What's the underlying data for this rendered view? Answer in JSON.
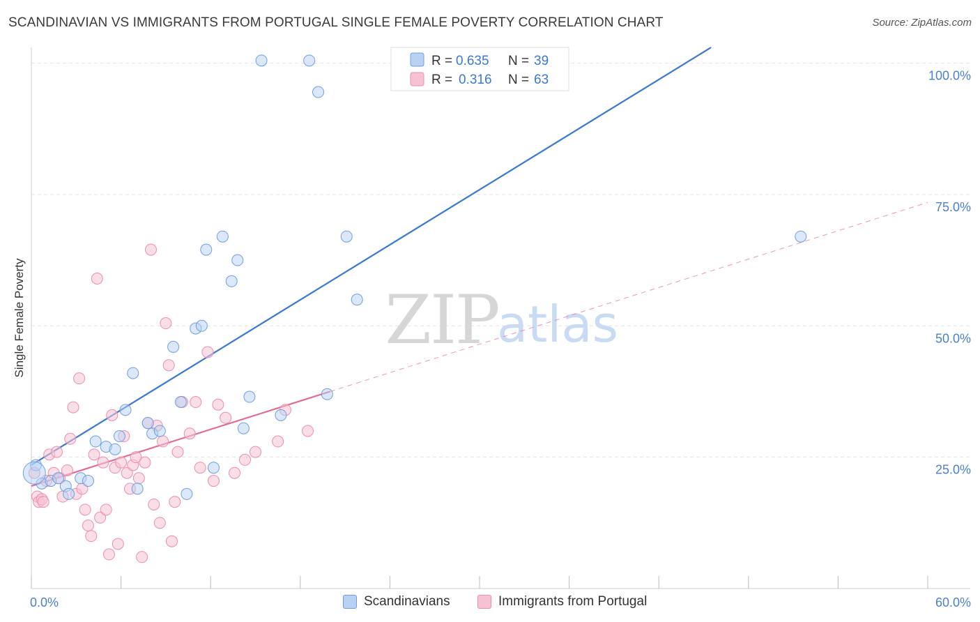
{
  "header": {
    "title": "SCANDINAVIAN VS IMMIGRANTS FROM PORTUGAL SINGLE FEMALE POVERTY CORRELATION CHART",
    "source": "Source: ZipAtlas.com"
  },
  "watermark": {
    "zip": "ZIP",
    "atlas": "atlas"
  },
  "legend": {
    "r_label": "R =",
    "n_label": "N =",
    "rows": [
      {
        "r": "0.635",
        "n": "39"
      },
      {
        "r": "0.316",
        "n": "63"
      }
    ]
  },
  "bottom_legend": {
    "items": [
      "Scandinavians",
      "Immigrants from Portugal"
    ]
  },
  "chart_data": {
    "type": "scatter",
    "title": "SCANDINAVIAN VS IMMIGRANTS FROM PORTUGAL SINGLE FEMALE POVERTY CORRELATION CHART",
    "xlabel": "",
    "ylabel": "Single Female Poverty",
    "xlim": [
      0,
      60
    ],
    "ylim": [
      0,
      103
    ],
    "x_tick_labels": [
      "0.0%",
      "60.0%"
    ],
    "y_ticks": [
      25,
      50,
      75,
      100
    ],
    "y_tick_labels": [
      "25.0%",
      "50.0%",
      "75.0%",
      "100.0%"
    ],
    "grid": true,
    "legend_position": "top-center",
    "colors": {
      "scandinavians": "#3b78d4",
      "scandinavians_fill": "#b8d1f3",
      "portugal": "#e26b97",
      "portugal_fill": "#f6c2d3",
      "tick_text": "#4a7fcf"
    },
    "series": [
      {
        "name": "Scandinavians",
        "r": 0.635,
        "n": 39,
        "trend": {
          "x": [
            0,
            45.5
          ],
          "y": [
            23.5,
            103
          ]
        },
        "points": [
          [
            0.3,
            23.5
          ],
          [
            0.7,
            20.0
          ],
          [
            1.3,
            20.5
          ],
          [
            1.8,
            21.0
          ],
          [
            2.3,
            19.5
          ],
          [
            2.5,
            18.0
          ],
          [
            3.3,
            21.0
          ],
          [
            3.8,
            20.5
          ],
          [
            4.3,
            28.0
          ],
          [
            5.0,
            27.0
          ],
          [
            5.6,
            26.5
          ],
          [
            5.9,
            29.0
          ],
          [
            6.3,
            34.0
          ],
          [
            6.8,
            41.0
          ],
          [
            7.1,
            19.0
          ],
          [
            7.8,
            31.5
          ],
          [
            8.1,
            29.5
          ],
          [
            8.6,
            30.0
          ],
          [
            9.5,
            46.0
          ],
          [
            10.0,
            35.5
          ],
          [
            10.4,
            18.0
          ],
          [
            11.0,
            49.5
          ],
          [
            11.4,
            50.0
          ],
          [
            11.7,
            64.5
          ],
          [
            12.2,
            23.0
          ],
          [
            12.8,
            67.0
          ],
          [
            13.4,
            58.5
          ],
          [
            13.8,
            62.5
          ],
          [
            14.2,
            30.5
          ],
          [
            14.6,
            36.5
          ],
          [
            15.4,
            100.5
          ],
          [
            16.7,
            33.0
          ],
          [
            18.6,
            100.5
          ],
          [
            19.2,
            94.5
          ],
          [
            19.8,
            37.0
          ],
          [
            21.1,
            67.0
          ],
          [
            21.8,
            55.0
          ],
          [
            51.5,
            67.0
          ],
          [
            0.2,
            22.0
          ]
        ]
      },
      {
        "name": "Immigrants from Portugal",
        "r": 0.316,
        "n": 63,
        "trend": {
          "x": [
            0,
            20.0
          ],
          "y": [
            19.5,
            37.5
          ]
        },
        "trend_dashed": {
          "x": [
            20.0,
            60
          ],
          "y": [
            37.5,
            73.5
          ]
        },
        "points": [
          [
            0.2,
            22.0
          ],
          [
            0.4,
            17.5
          ],
          [
            0.5,
            16.5
          ],
          [
            0.7,
            17.0
          ],
          [
            0.8,
            16.5
          ],
          [
            1.0,
            20.5
          ],
          [
            1.2,
            25.5
          ],
          [
            1.5,
            22.0
          ],
          [
            1.7,
            26.0
          ],
          [
            1.9,
            21.0
          ],
          [
            2.1,
            17.5
          ],
          [
            2.4,
            22.5
          ],
          [
            2.6,
            28.5
          ],
          [
            2.8,
            34.5
          ],
          [
            3.0,
            18.0
          ],
          [
            3.2,
            40.0
          ],
          [
            3.4,
            19.0
          ],
          [
            3.6,
            15.0
          ],
          [
            3.8,
            12.0
          ],
          [
            4.0,
            10.0
          ],
          [
            4.2,
            25.5
          ],
          [
            4.4,
            59.0
          ],
          [
            4.6,
            13.5
          ],
          [
            4.8,
            24.0
          ],
          [
            5.0,
            15.0
          ],
          [
            5.2,
            6.5
          ],
          [
            5.4,
            33.0
          ],
          [
            5.6,
            23.0
          ],
          [
            5.8,
            8.5
          ],
          [
            6.0,
            24.0
          ],
          [
            6.2,
            29.0
          ],
          [
            6.4,
            22.0
          ],
          [
            6.6,
            19.0
          ],
          [
            6.8,
            23.5
          ],
          [
            7.0,
            25.0
          ],
          [
            7.2,
            21.0
          ],
          [
            7.4,
            6.0
          ],
          [
            7.6,
            24.0
          ],
          [
            7.8,
            31.5
          ],
          [
            8.0,
            64.5
          ],
          [
            8.2,
            16.0
          ],
          [
            8.4,
            31.0
          ],
          [
            8.6,
            12.5
          ],
          [
            8.8,
            28.0
          ],
          [
            9.0,
            50.5
          ],
          [
            9.2,
            42.5
          ],
          [
            9.4,
            9.0
          ],
          [
            9.6,
            16.5
          ],
          [
            9.8,
            26.0
          ],
          [
            10.1,
            35.5
          ],
          [
            10.6,
            29.5
          ],
          [
            11.0,
            35.5
          ],
          [
            11.3,
            23.0
          ],
          [
            11.8,
            45.0
          ],
          [
            12.2,
            20.5
          ],
          [
            12.5,
            35.0
          ],
          [
            13.0,
            32.5
          ],
          [
            13.6,
            22.0
          ],
          [
            14.3,
            24.5
          ],
          [
            15.0,
            26.0
          ],
          [
            16.5,
            28.0
          ],
          [
            17.0,
            34.0
          ],
          [
            18.5,
            30.0
          ]
        ]
      }
    ]
  }
}
